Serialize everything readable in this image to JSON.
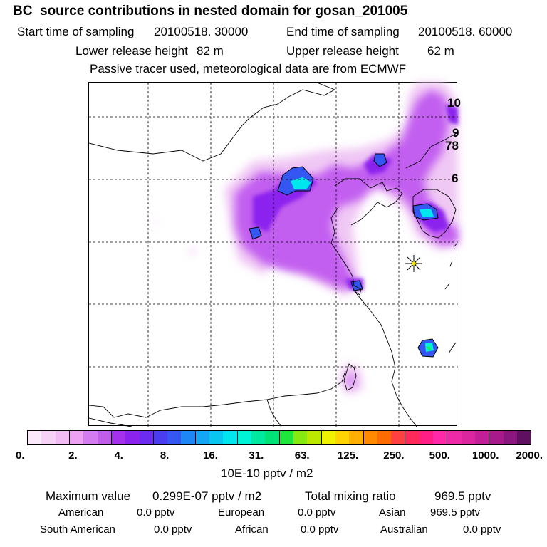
{
  "header": {
    "title": "BC  source contributions in nested domain for gosan_201005",
    "start_label": "Start time of sampling",
    "start_value": "20100518. 30000",
    "end_label": "End time of sampling",
    "end_value": "20100518. 60000",
    "lower_label": "Lower release height",
    "lower_value": "82 m",
    "upper_label": "Upper release height",
    "upper_value": "62 m",
    "note": "Passive tracer used, meteorological data are from ECMWF"
  },
  "map": {
    "edge_labels": [
      "10",
      "9",
      "78",
      "6"
    ],
    "receptor_marker": "star-receptor"
  },
  "colorbar": {
    "colors": [
      "#fbe9fb",
      "#f7d2f7",
      "#f1bbf4",
      "#eea0f2",
      "#d47cef",
      "#c05ee8",
      "#a631ec",
      "#8b22ee",
      "#6b2bf0",
      "#4a3cf0",
      "#3456f2",
      "#1f86f6",
      "#14a6f2",
      "#09c6f0",
      "#00e6ee",
      "#00f3d6",
      "#00e89e",
      "#00e278",
      "#1ee63c",
      "#86ea12",
      "#bce800",
      "#eef200",
      "#ffd400",
      "#ffb000",
      "#ff8a00",
      "#ff6a00",
      "#ff4040",
      "#ff2a5a",
      "#ff1e84",
      "#ff28a8",
      "#ee2aa8",
      "#da26a0",
      "#c21e98",
      "#a61a8c",
      "#8a1680",
      "#601060"
    ],
    "tick_labels": [
      "0.",
      "2.",
      "4.",
      "8.",
      "16.",
      "31.",
      "63.",
      "125.",
      "250.",
      "500.",
      "1000.",
      "2000."
    ],
    "unit": "10E-10 pptv / m2"
  },
  "stats": {
    "max_label": "Maximum value",
    "max_value": "0.299E-07 pptv / m2",
    "total_label": "Total mixing ratio",
    "total_value": "969.5 pptv",
    "sources": [
      {
        "name": "American",
        "value": "0.0 pptv"
      },
      {
        "name": "European",
        "value": "0.0 pptv"
      },
      {
        "name": "Asian",
        "value": "969.5 pptv"
      },
      {
        "name": "South American",
        "value": "0.0 pptv"
      },
      {
        "name": "African",
        "value": "0.0 pptv"
      },
      {
        "name": "Australian",
        "value": "0.0 pptv"
      }
    ]
  }
}
